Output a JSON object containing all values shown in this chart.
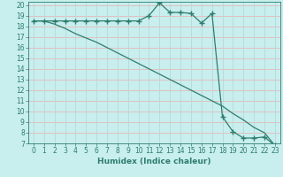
{
  "xlabel": "Humidex (Indice chaleur)",
  "x": [
    0,
    1,
    2,
    3,
    4,
    5,
    6,
    7,
    8,
    9,
    10,
    11,
    12,
    13,
    14,
    15,
    16,
    17,
    18,
    19,
    20,
    21,
    22,
    23
  ],
  "line1_y": [
    18.5,
    18.5,
    18.5,
    18.5,
    18.5,
    18.5,
    18.5,
    18.5,
    18.5,
    18.5,
    18.5,
    19.0,
    20.2,
    19.3,
    19.3,
    19.2,
    18.3,
    19.2,
    9.5,
    8.1,
    7.5,
    7.5,
    7.6,
    6.8
  ],
  "line2_y": [
    18.5,
    18.5,
    18.2,
    17.8,
    17.3,
    16.9,
    16.5,
    16.0,
    15.5,
    15.0,
    14.5,
    14.0,
    13.5,
    13.0,
    12.5,
    12.0,
    11.5,
    11.0,
    10.5,
    9.8,
    9.2,
    8.5,
    8.0,
    6.8
  ],
  "line_color": "#2e7d6e",
  "bg_color": "#c8eeee",
  "grid_color_h": "#e8b8b8",
  "grid_color_v": "#b8d8d8",
  "ylim": [
    7,
    20
  ],
  "xlim": [
    -0.5,
    23.5
  ],
  "yticks": [
    7,
    8,
    9,
    10,
    11,
    12,
    13,
    14,
    15,
    16,
    17,
    18,
    19,
    20
  ],
  "xticks": [
    0,
    1,
    2,
    3,
    4,
    5,
    6,
    7,
    8,
    9,
    10,
    11,
    12,
    13,
    14,
    15,
    16,
    17,
    18,
    19,
    20,
    21,
    22,
    23
  ],
  "marker": "+",
  "markersize": 4,
  "linewidth": 0.9,
  "tick_fontsize": 5.5,
  "xlabel_fontsize": 6.5
}
